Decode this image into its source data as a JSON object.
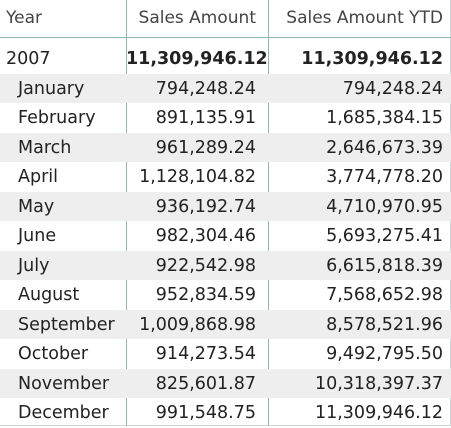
{
  "table": {
    "headers": {
      "year": "Year",
      "sales": "Sales Amount",
      "ytd": "Sales Amount YTD"
    },
    "year_row": {
      "label": "2007",
      "sales": "11,309,946.12",
      "ytd": "11,309,946.12"
    },
    "months": [
      {
        "label": "January",
        "sales": "794,248.24",
        "ytd": "794,248.24"
      },
      {
        "label": "February",
        "sales": "891,135.91",
        "ytd": "1,685,384.15"
      },
      {
        "label": "March",
        "sales": "961,289.24",
        "ytd": "2,646,673.39"
      },
      {
        "label": "April",
        "sales": "1,128,104.82",
        "ytd": "3,774,778.20"
      },
      {
        "label": "May",
        "sales": "936,192.74",
        "ytd": "4,710,970.95"
      },
      {
        "label": "June",
        "sales": "982,304.46",
        "ytd": "5,693,275.41"
      },
      {
        "label": "July",
        "sales": "922,542.98",
        "ytd": "6,615,818.39"
      },
      {
        "label": "August",
        "sales": "952,834.59",
        "ytd": "7,568,652.98"
      },
      {
        "label": "September",
        "sales": "1,009,868.98",
        "ytd": "8,578,521.96"
      },
      {
        "label": "October",
        "sales": "914,273.54",
        "ytd": "9,492,795.50"
      },
      {
        "label": "November",
        "sales": "825,601.87",
        "ytd": "10,318,397.37"
      },
      {
        "label": "December",
        "sales": "991,548.75",
        "ytd": "11,309,946.12"
      }
    ]
  }
}
